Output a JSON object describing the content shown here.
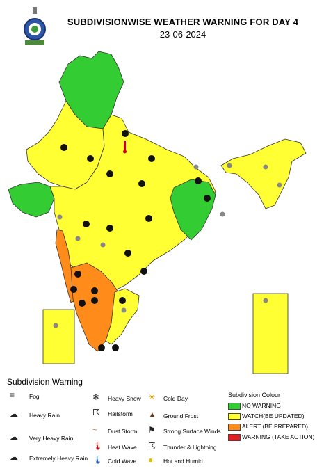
{
  "header": {
    "title": "SUBDIVISIONWISE WEATHER WARNING FOR DAY 4",
    "date": "23-06-2024"
  },
  "colors": {
    "no_warning": "#33cc33",
    "watch": "#ffff33",
    "alert": "#ff8c1a",
    "warning": "#e02020",
    "border": "#333333"
  },
  "legend": {
    "title": "Subdivision Warning",
    "items": [
      {
        "icon": "fog-icon",
        "label": "Fog"
      },
      {
        "icon": "heavy-rain-icon",
        "label": "Heavy Rain"
      },
      {
        "icon": "very-heavy-rain-icon",
        "label": "Very Heavy Rain"
      },
      {
        "icon": "extremely-heavy-rain-icon",
        "label": "Extremely Heavy Rain"
      },
      {
        "icon": "heavy-snow-icon",
        "label": "Heavy Snow"
      },
      {
        "icon": "hailstorm-icon",
        "label": "Hailstorm"
      },
      {
        "icon": "dust-storm-icon",
        "label": "Dust Storm"
      },
      {
        "icon": "heat-wave-icon",
        "label": "Heat Wave"
      },
      {
        "icon": "cold-wave-icon",
        "label": "Cold Wave"
      },
      {
        "icon": "cold-day-icon",
        "label": "Cold Day"
      },
      {
        "icon": "ground-frost-icon",
        "label": "Ground Frost"
      },
      {
        "icon": "strong-surface-winds-icon",
        "label": "Strong Surface Winds"
      },
      {
        "icon": "thunder-lightning-icon",
        "label": "Thunder & Lightning"
      },
      {
        "icon": "hot-humid-icon",
        "label": "Hot and Humid"
      }
    ]
  },
  "colour_legend": {
    "title": "Subdivision Colour",
    "items": [
      {
        "label": "NO WARNING",
        "color": "#33cc33"
      },
      {
        "label": "WATCH(BE UPDATED)",
        "color": "#ffff33"
      },
      {
        "label": "ALERT (BE PREPARED)",
        "color": "#ff8c1a"
      },
      {
        "label": "WARNING (TAKE ACTION)",
        "color": "#e02020"
      }
    ]
  }
}
